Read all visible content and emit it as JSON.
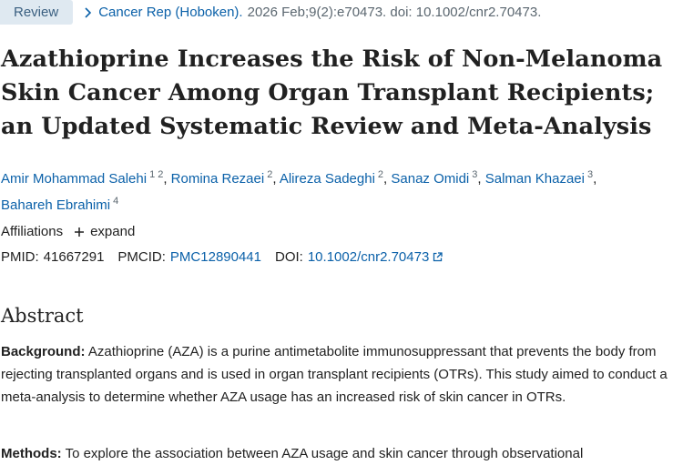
{
  "article_type": "Review",
  "citation": {
    "journal": "Cancer Rep (Hoboken).",
    "details": "2026 Feb;9(2):e70473. doi: 10.1002/cnr2.70473."
  },
  "title": "Azathioprine Increases the Risk of Non-Melanoma Skin Cancer Among Organ Transplant Recipients; an Updated Systematic Review and Meta-Analysis",
  "authors": [
    {
      "name": "Amir Mohammad Salehi",
      "affiliations": [
        "1",
        "2"
      ]
    },
    {
      "name": "Romina Rezaei",
      "affiliations": [
        "2"
      ]
    },
    {
      "name": "Alireza Sadeghi",
      "affiliations": [
        "2"
      ]
    },
    {
      "name": "Sanaz Omidi",
      "affiliations": [
        "3"
      ]
    },
    {
      "name": "Salman Khazaei",
      "affiliations": [
        "3"
      ]
    },
    {
      "name": "Bahareh Ebrahimi",
      "affiliations": [
        "4"
      ]
    }
  ],
  "affiliations": {
    "label": "Affiliations",
    "expand_label": "expand"
  },
  "identifiers": {
    "pmid_label": "PMID:",
    "pmid": "41667291",
    "pmcid_label": "PMCID:",
    "pmcid": "PMC12890441",
    "doi_label": "DOI:",
    "doi": "10.1002/cnr2.70473"
  },
  "abstract": {
    "heading": "Abstract",
    "background_label": "Background:",
    "background_text": "Azathioprine (AZA) is a purine antimetabolite immunosuppressant that prevents the body from rejecting transplanted organs and is used in organ transplant recipients (OTRs). This study aimed to conduct a meta-analysis to determine whether AZA usage has an increased risk of skin cancer in OTRs.",
    "methods_label": "Methods:",
    "methods_text": "To explore the association between AZA usage and skin cancer through observational"
  },
  "icons": {
    "breadcrumb": "chevron-right-icon",
    "expand": "plus-icon",
    "doi_link": "external-link-icon"
  },
  "colors": {
    "link": "#0b61a9",
    "badge_bg": "#dfe9f1",
    "badge_text": "#3a5f80",
    "muted": "#5b6770"
  }
}
